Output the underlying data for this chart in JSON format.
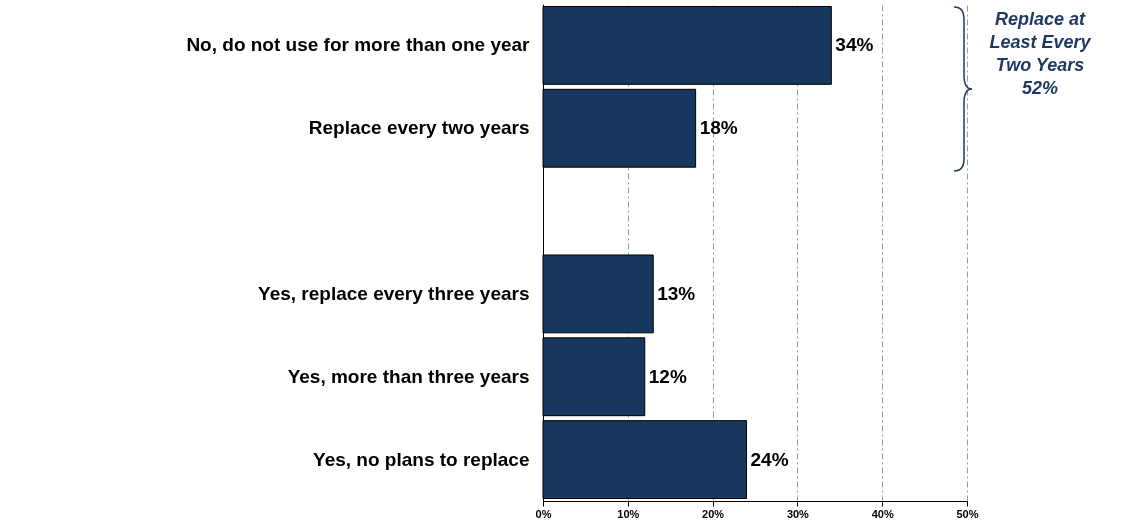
{
  "chart_data": {
    "type": "bar",
    "orientation": "horizontal",
    "categories": [
      "No, do not use for more than one year",
      "Replace every two years",
      null,
      "Yes, replace every three years",
      "Yes, more than three years",
      "Yes, no plans to replace"
    ],
    "values": [
      34,
      18,
      null,
      13,
      12,
      24
    ],
    "value_labels": [
      "34%",
      "18%",
      null,
      "13%",
      "12%",
      "24%"
    ],
    "color": "#17375e",
    "xlim": [
      0,
      50
    ],
    "xticks": [
      {
        "value": 0,
        "label": "0%"
      },
      {
        "value": 10,
        "label": "10%"
      },
      {
        "value": 20,
        "label": "20%"
      },
      {
        "value": 30,
        "label": "30%"
      },
      {
        "value": 40,
        "label": "40%"
      },
      {
        "value": 50,
        "label": "50%"
      }
    ],
    "grid": "x",
    "annotations": [
      "Replace at Least Every Two Years 52%"
    ]
  }
}
